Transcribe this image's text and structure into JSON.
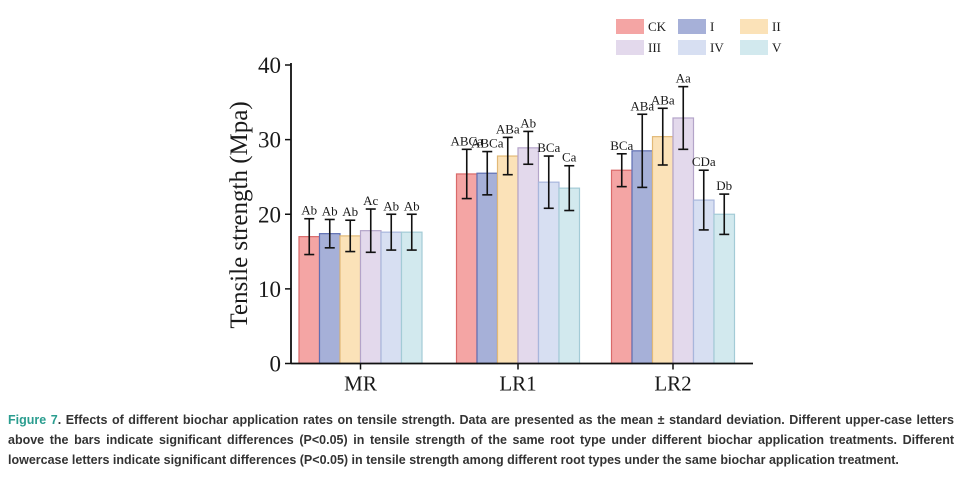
{
  "colors": {
    "CK": "#f4a5a4",
    "I": "#a6b0d8",
    "II": "#fbe2b8",
    "III": "#e3d9ec",
    "IV": "#d7dff2",
    "V": "#d2e9ee",
    "edge_CK": "#d96a6a",
    "edge_I": "#5f6fb2",
    "edge_II": "#e2b977",
    "edge_III": "#b4a4c9",
    "edge_IV": "#a8b6dc",
    "edge_V": "#a3cbd6"
  },
  "chart_data": {
    "type": "bar",
    "ylabel": "Tensile strength (Mpa)",
    "ylim": [
      0,
      40
    ],
    "yticks": [
      0,
      10,
      20,
      30,
      40
    ],
    "categories": [
      "MR",
      "LR1",
      "LR2"
    ],
    "series": [
      {
        "name": "CK",
        "values": [
          17.0,
          25.4,
          25.9
        ],
        "errors": [
          2.4,
          3.3,
          2.2
        ],
        "labels": [
          "Ab",
          "ABCa",
          "BCa"
        ]
      },
      {
        "name": "I",
        "values": [
          17.4,
          25.5,
          28.5
        ],
        "errors": [
          1.9,
          2.9,
          4.9
        ],
        "labels": [
          "Ab",
          "ABCa",
          "ABa"
        ]
      },
      {
        "name": "II",
        "values": [
          17.1,
          27.8,
          30.4
        ],
        "errors": [
          2.1,
          2.5,
          3.8
        ],
        "labels": [
          "Ab",
          "ABa",
          "ABa"
        ]
      },
      {
        "name": "III",
        "values": [
          17.8,
          28.9,
          32.9
        ],
        "errors": [
          2.9,
          2.2,
          4.2
        ],
        "labels": [
          "Ac",
          "Ab",
          "Aa"
        ]
      },
      {
        "name": "IV",
        "values": [
          17.6,
          24.3,
          21.9
        ],
        "errors": [
          2.4,
          3.5,
          4.0
        ],
        "labels": [
          "Ab",
          "BCa",
          "CDa"
        ]
      },
      {
        "name": "V",
        "values": [
          17.6,
          23.5,
          20.0
        ],
        "errors": [
          2.4,
          3.0,
          2.7
        ],
        "labels": [
          "Ab",
          "Ca",
          "Db"
        ]
      }
    ],
    "legend": [
      "CK",
      "I",
      "II",
      "III",
      "IV",
      "V"
    ],
    "legend_placement": "top-right"
  },
  "caption": {
    "label": "Figure 7",
    "text": ". Effects of different biochar application rates on tensile strength. Data are presented as the mean ± standard deviation. Different upper-case letters above the bars indicate significant differences (P<0.05) in tensile strength of the same root type under different biochar application treatments. Different lowercase letters indicate significant differences (P<0.05) in tensile strength among different root types under the same biochar application treatment."
  }
}
